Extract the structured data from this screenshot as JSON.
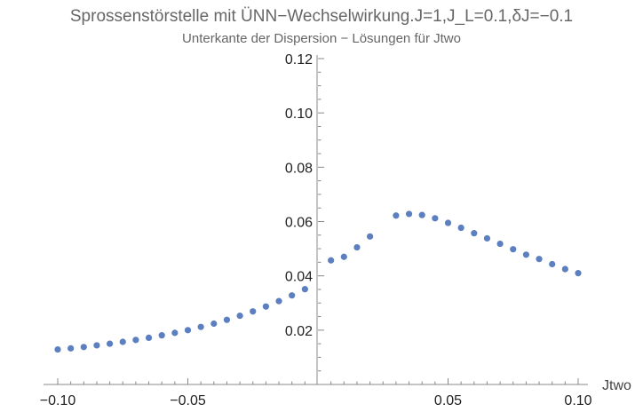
{
  "chart_data": {
    "type": "scatter",
    "title": "Sprossenstörstelle mit ÜNN−Wechselwirkung.J=1,J_L=0.1,δJ=−0.1",
    "subtitle": "Unterkante der Dispersion − Lösungen für Jtwo",
    "xlabel": "Jtwo",
    "ylabel": "",
    "xlim": [
      -0.1,
      0.1
    ],
    "ylim": [
      0.0,
      0.12
    ],
    "x_ticks": [
      {
        "value": -0.1,
        "label": "−0.10"
      },
      {
        "value": -0.05,
        "label": "−0.05"
      },
      {
        "value": 0.05,
        "label": "0.05"
      },
      {
        "value": 0.1,
        "label": "0.10"
      }
    ],
    "y_ticks": [
      {
        "value": 0.02,
        "label": "0.02"
      },
      {
        "value": 0.04,
        "label": "0.04"
      },
      {
        "value": 0.06,
        "label": "0.06"
      },
      {
        "value": 0.08,
        "label": "0.08"
      },
      {
        "value": 0.1,
        "label": "0.10"
      },
      {
        "value": 0.12,
        "label": "0.12"
      }
    ],
    "grid": false,
    "series": [
      {
        "color": "#5b7fbf",
        "points": [
          [
            -0.1,
            0.0129
          ],
          [
            -0.095,
            0.0133
          ],
          [
            -0.09,
            0.0138
          ],
          [
            -0.085,
            0.0144
          ],
          [
            -0.08,
            0.015
          ],
          [
            -0.075,
            0.0157
          ],
          [
            -0.07,
            0.0164
          ],
          [
            -0.065,
            0.0172
          ],
          [
            -0.06,
            0.0181
          ],
          [
            -0.055,
            0.019
          ],
          [
            -0.05,
            0.02
          ],
          [
            -0.045,
            0.0212
          ],
          [
            -0.04,
            0.0224
          ],
          [
            -0.035,
            0.0238
          ],
          [
            -0.03,
            0.0253
          ],
          [
            -0.025,
            0.0269
          ],
          [
            -0.02,
            0.0287
          ],
          [
            -0.015,
            0.0307
          ],
          [
            -0.01,
            0.0328
          ],
          [
            -0.005,
            0.0351
          ],
          [
            0.005,
            0.0457
          ],
          [
            0.01,
            0.047
          ],
          [
            0.015,
            0.0505
          ],
          [
            0.02,
            0.0545
          ],
          [
            0.03,
            0.0622
          ],
          [
            0.035,
            0.0628
          ],
          [
            0.04,
            0.0624
          ],
          [
            0.045,
            0.0612
          ],
          [
            0.05,
            0.0595
          ],
          [
            0.055,
            0.0577
          ],
          [
            0.06,
            0.0557
          ],
          [
            0.065,
            0.0538
          ],
          [
            0.07,
            0.0518
          ],
          [
            0.075,
            0.0498
          ],
          [
            0.08,
            0.0478
          ],
          [
            0.085,
            0.0462
          ],
          [
            0.09,
            0.0443
          ],
          [
            0.095,
            0.0425
          ],
          [
            0.1,
            0.041
          ]
        ]
      }
    ]
  }
}
